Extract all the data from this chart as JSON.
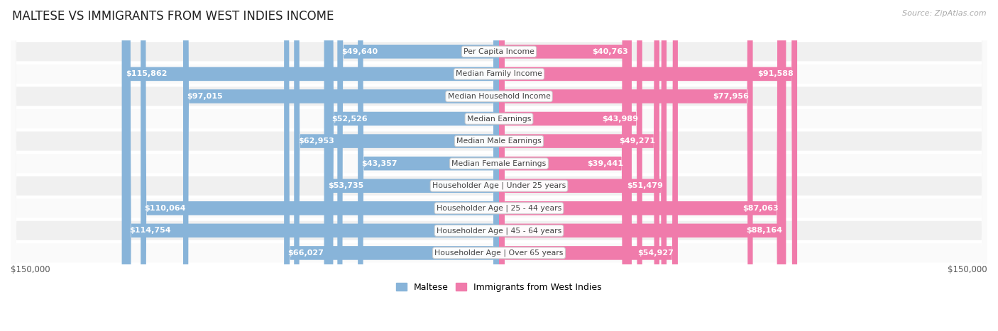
{
  "title": "MALTESE VS IMMIGRANTS FROM WEST INDIES INCOME",
  "source": "Source: ZipAtlas.com",
  "categories": [
    "Per Capita Income",
    "Median Family Income",
    "Median Household Income",
    "Median Earnings",
    "Median Male Earnings",
    "Median Female Earnings",
    "Householder Age | Under 25 years",
    "Householder Age | 25 - 44 years",
    "Householder Age | 45 - 64 years",
    "Householder Age | Over 65 years"
  ],
  "maltese_values": [
    49640,
    115862,
    97015,
    52526,
    62953,
    43357,
    53735,
    110064,
    114754,
    66027
  ],
  "westindies_values": [
    40763,
    91588,
    77956,
    43989,
    49271,
    39441,
    51479,
    87063,
    88164,
    54927
  ],
  "maltese_labels": [
    "$49,640",
    "$115,862",
    "$97,015",
    "$52,526",
    "$62,953",
    "$43,357",
    "$53,735",
    "$110,064",
    "$114,754",
    "$66,027"
  ],
  "westindies_labels": [
    "$40,763",
    "$91,588",
    "$77,956",
    "$43,989",
    "$49,271",
    "$39,441",
    "$51,479",
    "$87,063",
    "$88,164",
    "$54,927"
  ],
  "max_value": 150000,
  "maltese_color": "#88b4d9",
  "westindies_color": "#f07bab",
  "row_bg_odd": "#f0f0f0",
  "row_bg_even": "#fafafa",
  "label_color_inside": "#ffffff",
  "label_color_outside": "#555555",
  "legend_maltese": "Maltese",
  "legend_westindies": "Immigrants from West Indies",
  "inside_threshold": 0.2
}
